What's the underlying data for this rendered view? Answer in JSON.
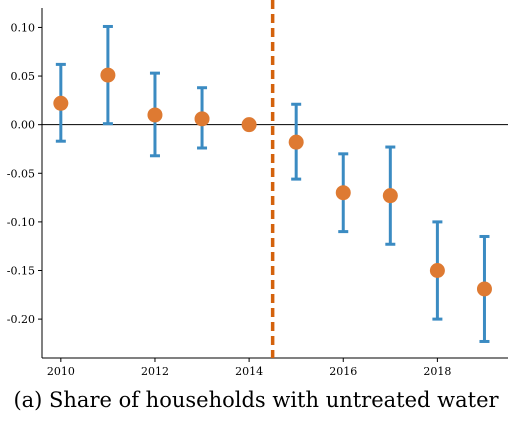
{
  "chart_data": {
    "type": "scatter",
    "title": "",
    "xlabel": "",
    "ylabel": "",
    "x": [
      2010,
      2011,
      2012,
      2013,
      2014,
      2015,
      2016,
      2017,
      2018,
      2019
    ],
    "series": [
      {
        "values": [
          0.022,
          0.051,
          0.01,
          0.006,
          0.0,
          -0.018,
          -0.07,
          -0.073,
          -0.15,
          -0.169
        ],
        "ci_low": [
          -0.017,
          0.001,
          -0.032,
          -0.024,
          null,
          -0.056,
          -0.11,
          -0.123,
          -0.2,
          -0.223
        ],
        "ci_high": [
          0.062,
          0.101,
          0.053,
          0.038,
          null,
          0.021,
          -0.03,
          -0.023,
          -0.1,
          -0.115
        ],
        "point_color": "#de7a32",
        "errorbar_color": "#3b8bc2"
      }
    ],
    "xlim": [
      2009.6,
      2019.5
    ],
    "ylim": [
      -0.24,
      0.12
    ],
    "xticks": [
      2010,
      2012,
      2014,
      2016,
      2018
    ],
    "xtick_labels": [
      "2010",
      "2012",
      "2014",
      "2016",
      "2018"
    ],
    "yticks": [
      0.1,
      0.05,
      0.0,
      -0.05,
      -0.1,
      -0.15,
      -0.2
    ],
    "ytick_labels": [
      "0.10",
      "0.05",
      "0.00",
      "-0.05",
      "-0.10",
      "-0.15",
      "-0.20"
    ],
    "reference_hline": 0,
    "reference_vline": 2014.5,
    "reference_vline_color": "#d4620c",
    "grid": false,
    "legend": "none"
  },
  "caption": "(a) Share of households with untreated water"
}
